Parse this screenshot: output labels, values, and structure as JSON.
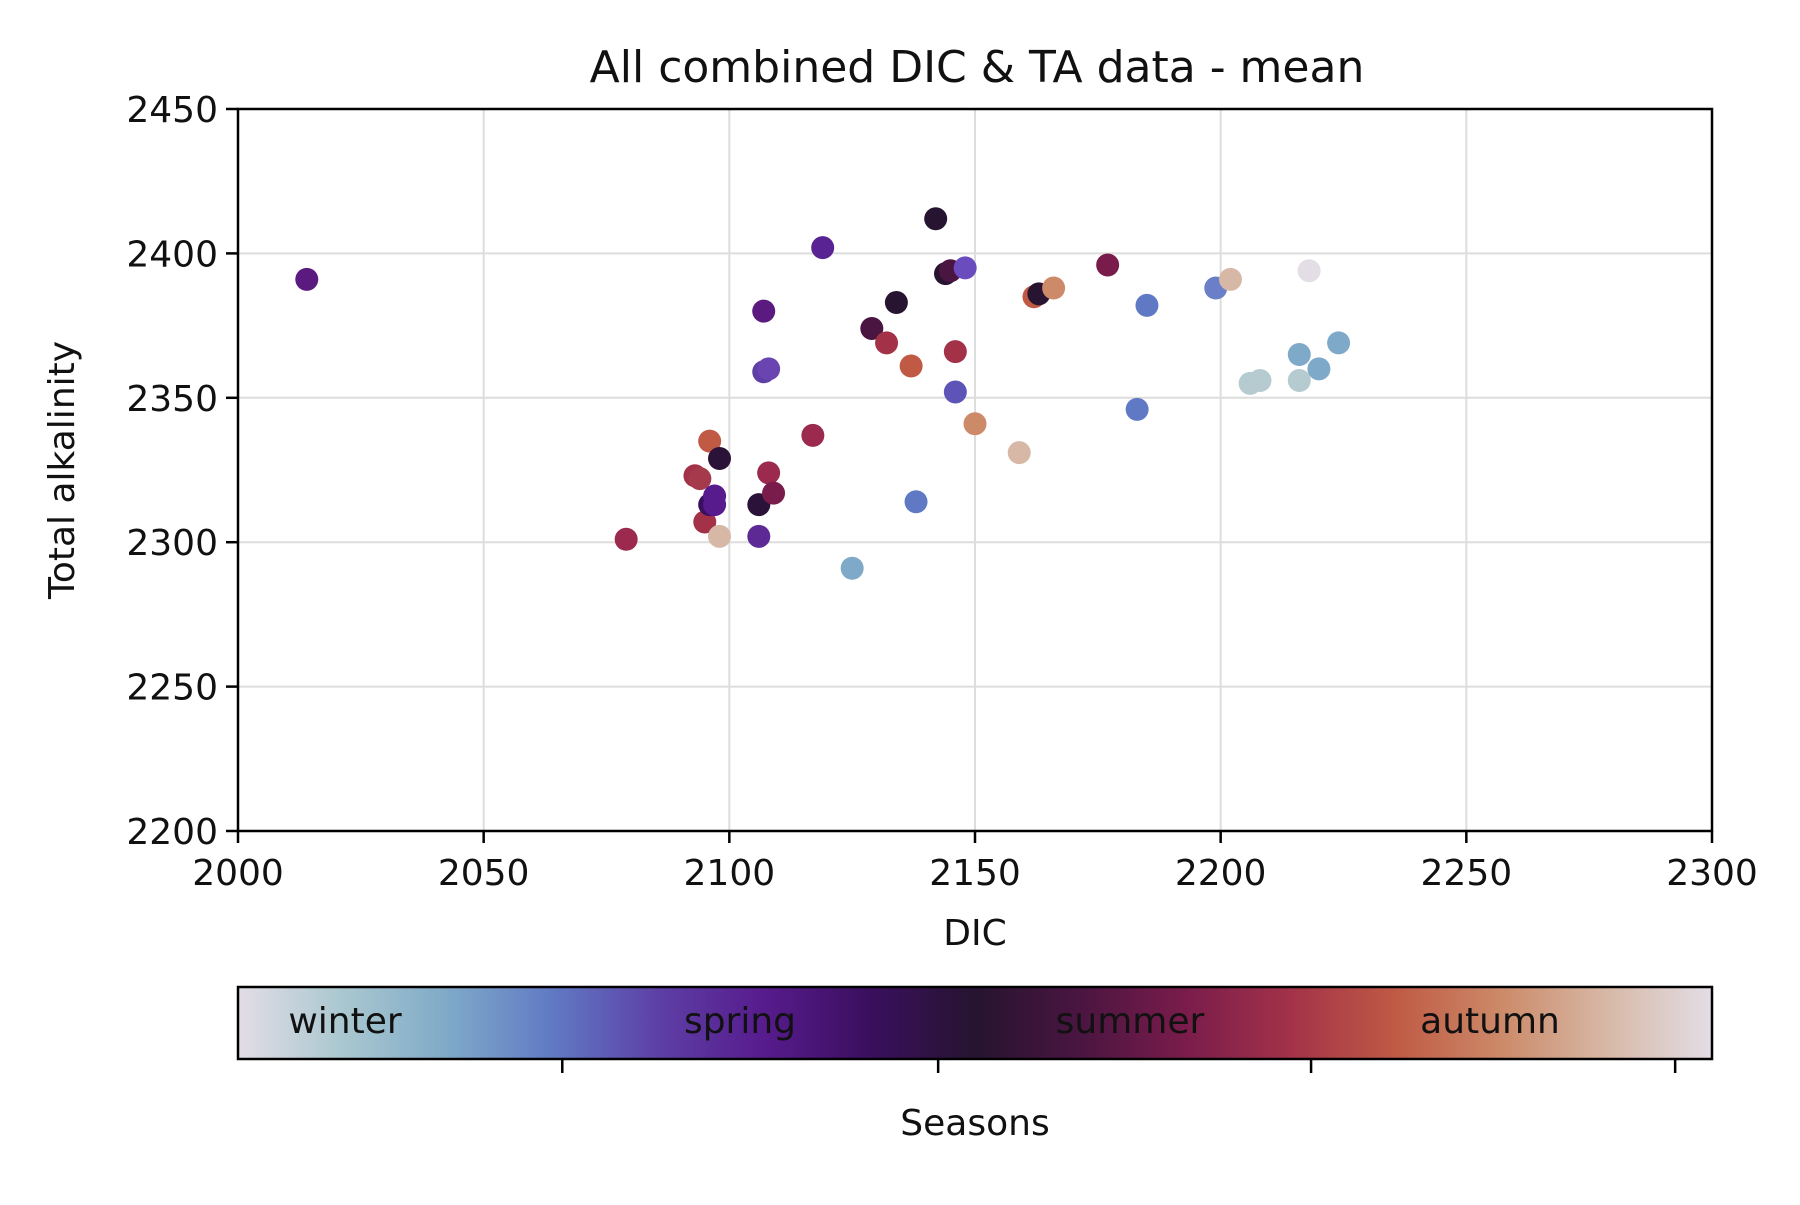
{
  "chart_data": {
    "type": "scatter",
    "title": "All combined DIC & TA data - mean",
    "xlabel": "DIC",
    "ylabel": "Total alkalinity",
    "xlim": [
      2000,
      2300
    ],
    "ylim": [
      2200,
      2450
    ],
    "xticks": [
      2000,
      2050,
      2100,
      2150,
      2200,
      2250,
      2300
    ],
    "yticks": [
      2200,
      2250,
      2300,
      2350,
      2400,
      2450
    ],
    "grid": true,
    "colorbar": {
      "label": "Seasons",
      "position": "bottom",
      "season_labels": [
        "winter",
        "spring",
        "summer",
        "autumn"
      ],
      "colors": [
        "#e3dde6",
        "#a9c7cf",
        "#7fa9c8",
        "#6079c4",
        "#5d3fa5",
        "#571b8d",
        "#3a0f5e",
        "#261430",
        "#4a1541",
        "#7a1c4b",
        "#a33249",
        "#c05a45",
        "#cc8a69",
        "#d7b8a6",
        "#e3dde6"
      ],
      "ticks": [
        0.22,
        0.475,
        0.728,
        0.975
      ]
    },
    "points": [
      {
        "x": 2014,
        "y": 2391,
        "c": "#5a1a80"
      },
      {
        "x": 2079,
        "y": 2301,
        "c": "#9b2a4e"
      },
      {
        "x": 2093,
        "y": 2323,
        "c": "#a33249"
      },
      {
        "x": 2094,
        "y": 2322,
        "c": "#a53a4d"
      },
      {
        "x": 2095,
        "y": 2307,
        "c": "#a33249"
      },
      {
        "x": 2096,
        "y": 2335,
        "c": "#c05a45"
      },
      {
        "x": 2096,
        "y": 2313,
        "c": "#3a0f5e"
      },
      {
        "x": 2097,
        "y": 2316,
        "c": "#571b8d"
      },
      {
        "x": 2097,
        "y": 2313,
        "c": "#571b8d"
      },
      {
        "x": 2098,
        "y": 2329,
        "c": "#2a1238"
      },
      {
        "x": 2098,
        "y": 2302,
        "c": "#d7b8a6"
      },
      {
        "x": 2106,
        "y": 2313,
        "c": "#2a1238"
      },
      {
        "x": 2106,
        "y": 2302,
        "c": "#5d2a95"
      },
      {
        "x": 2107,
        "y": 2380,
        "c": "#5a1a80"
      },
      {
        "x": 2107,
        "y": 2359,
        "c": "#5d3fa5"
      },
      {
        "x": 2108,
        "y": 2324,
        "c": "#9b2a4e"
      },
      {
        "x": 2109,
        "y": 2317,
        "c": "#7a1c4b"
      },
      {
        "x": 2108,
        "y": 2360,
        "c": "#6a44b0"
      },
      {
        "x": 2117,
        "y": 2337,
        "c": "#9b2a4e"
      },
      {
        "x": 2119,
        "y": 2402,
        "c": "#5a2393"
      },
      {
        "x": 2125,
        "y": 2291,
        "c": "#7fa9c8"
      },
      {
        "x": 2129,
        "y": 2374,
        "c": "#4a1541"
      },
      {
        "x": 2132,
        "y": 2369,
        "c": "#a33249"
      },
      {
        "x": 2134,
        "y": 2383,
        "c": "#261430"
      },
      {
        "x": 2137,
        "y": 2361,
        "c": "#c05a45"
      },
      {
        "x": 2138,
        "y": 2314,
        "c": "#6079c4"
      },
      {
        "x": 2142,
        "y": 2412,
        "c": "#261430"
      },
      {
        "x": 2144,
        "y": 2393,
        "c": "#261430"
      },
      {
        "x": 2145,
        "y": 2394,
        "c": "#4a1541"
      },
      {
        "x": 2146,
        "y": 2366,
        "c": "#a33249"
      },
      {
        "x": 2146,
        "y": 2352,
        "c": "#5d54b8"
      },
      {
        "x": 2148,
        "y": 2395,
        "c": "#6a4cbf"
      },
      {
        "x": 2150,
        "y": 2341,
        "c": "#cc8a69"
      },
      {
        "x": 2159,
        "y": 2331,
        "c": "#d7b8a6"
      },
      {
        "x": 2162,
        "y": 2385,
        "c": "#c05a45"
      },
      {
        "x": 2163,
        "y": 2386,
        "c": "#261430"
      },
      {
        "x": 2166,
        "y": 2388,
        "c": "#cc8a69"
      },
      {
        "x": 2177,
        "y": 2396,
        "c": "#7a1c4b"
      },
      {
        "x": 2183,
        "y": 2346,
        "c": "#6079c4"
      },
      {
        "x": 2185,
        "y": 2382,
        "c": "#6079c4"
      },
      {
        "x": 2199,
        "y": 2388,
        "c": "#6a7fc8"
      },
      {
        "x": 2202,
        "y": 2391,
        "c": "#d7b8a6"
      },
      {
        "x": 2206,
        "y": 2355,
        "c": "#b6cbd0"
      },
      {
        "x": 2208,
        "y": 2356,
        "c": "#b6cbd0"
      },
      {
        "x": 2216,
        "y": 2356,
        "c": "#b6cbd0"
      },
      {
        "x": 2216,
        "y": 2365,
        "c": "#7fa9c8"
      },
      {
        "x": 2218,
        "y": 2394,
        "c": "#e3dde6"
      },
      {
        "x": 2220,
        "y": 2360,
        "c": "#7fa9c8"
      },
      {
        "x": 2224,
        "y": 2369,
        "c": "#7fa9c8"
      }
    ]
  }
}
